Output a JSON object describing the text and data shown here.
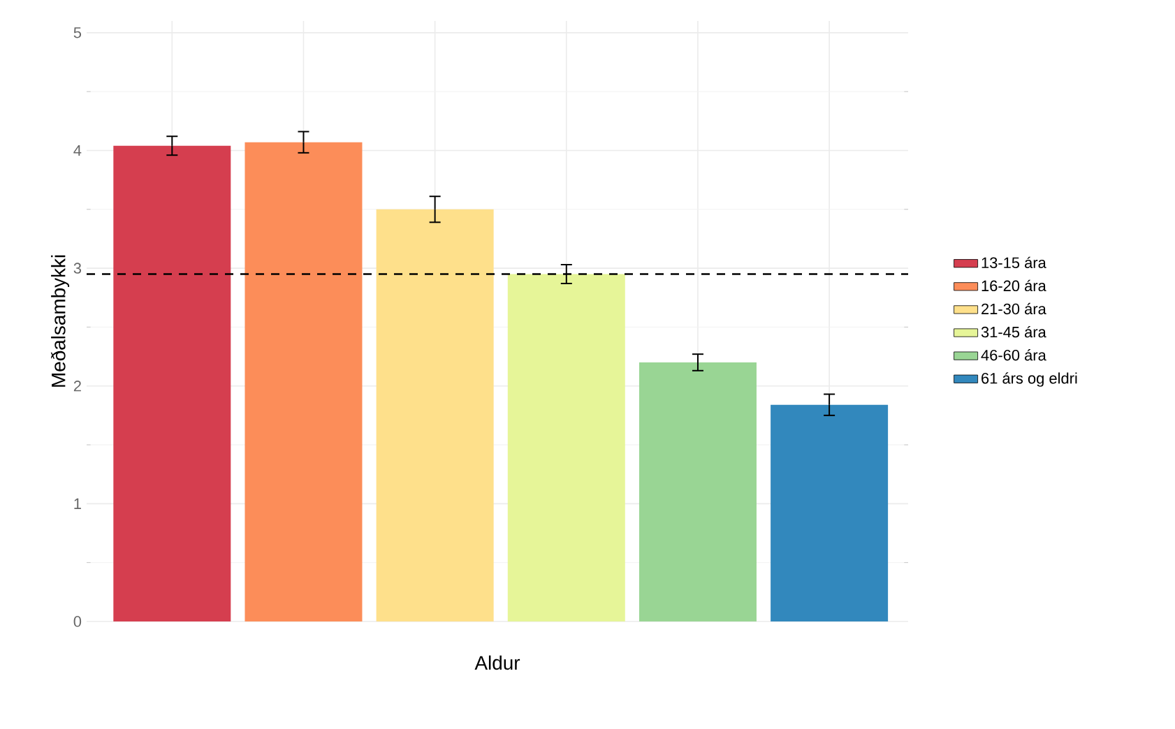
{
  "chart_data": {
    "type": "bar",
    "xlabel": "Aldur",
    "ylabel": "Meðalsambykki",
    "categories": [
      null,
      null,
      null,
      null,
      null,
      null
    ],
    "series": [
      {
        "name": "13-15 ára",
        "color": "#d53e4f",
        "values": [
          4.04,
          null,
          null,
          null,
          null,
          null
        ],
        "errors": [
          0.08,
          null,
          null,
          null,
          null,
          null
        ]
      },
      {
        "name": "16-20 ára",
        "color": "#fc8d59",
        "values": [
          null,
          4.07,
          null,
          null,
          null,
          null
        ],
        "errors": [
          null,
          0.09,
          null,
          null,
          null,
          null
        ]
      },
      {
        "name": "21-30 ára",
        "color": "#fee08b",
        "values": [
          null,
          null,
          3.5,
          null,
          null,
          null
        ],
        "errors": [
          null,
          null,
          0.11,
          null,
          null,
          null
        ]
      },
      {
        "name": "31-45 ára",
        "color": "#e6f598",
        "values": [
          null,
          null,
          null,
          2.95,
          null,
          null
        ],
        "errors": [
          null,
          null,
          null,
          0.08,
          null,
          null
        ]
      },
      {
        "name": "46-60 ára",
        "color": "#99d594",
        "values": [
          null,
          null,
          null,
          null,
          2.2,
          null
        ],
        "errors": [
          null,
          null,
          null,
          null,
          0.07,
          null
        ]
      },
      {
        "name": "61 árs og eldri",
        "color": "#3288bd",
        "values": [
          null,
          null,
          null,
          null,
          null,
          1.84
        ],
        "errors": [
          null,
          null,
          null,
          null,
          null,
          0.09
        ]
      }
    ],
    "ylim": [
      0,
      5.1
    ],
    "yticks": [
      0,
      {
        "value": 0.5,
        "label": null
      },
      1,
      {
        "value": 1.5,
        "label": null
      },
      2,
      {
        "value": 2.5,
        "label": null
      },
      3,
      {
        "value": 3.5,
        "label": null
      },
      4,
      {
        "value": 4.5,
        "label": null
      },
      5
    ],
    "ref_lines": [
      {
        "axis": "y",
        "value": 2.95,
        "color": "#000000",
        "line_style": "dashed"
      }
    ],
    "grid": true,
    "legend": "right"
  }
}
